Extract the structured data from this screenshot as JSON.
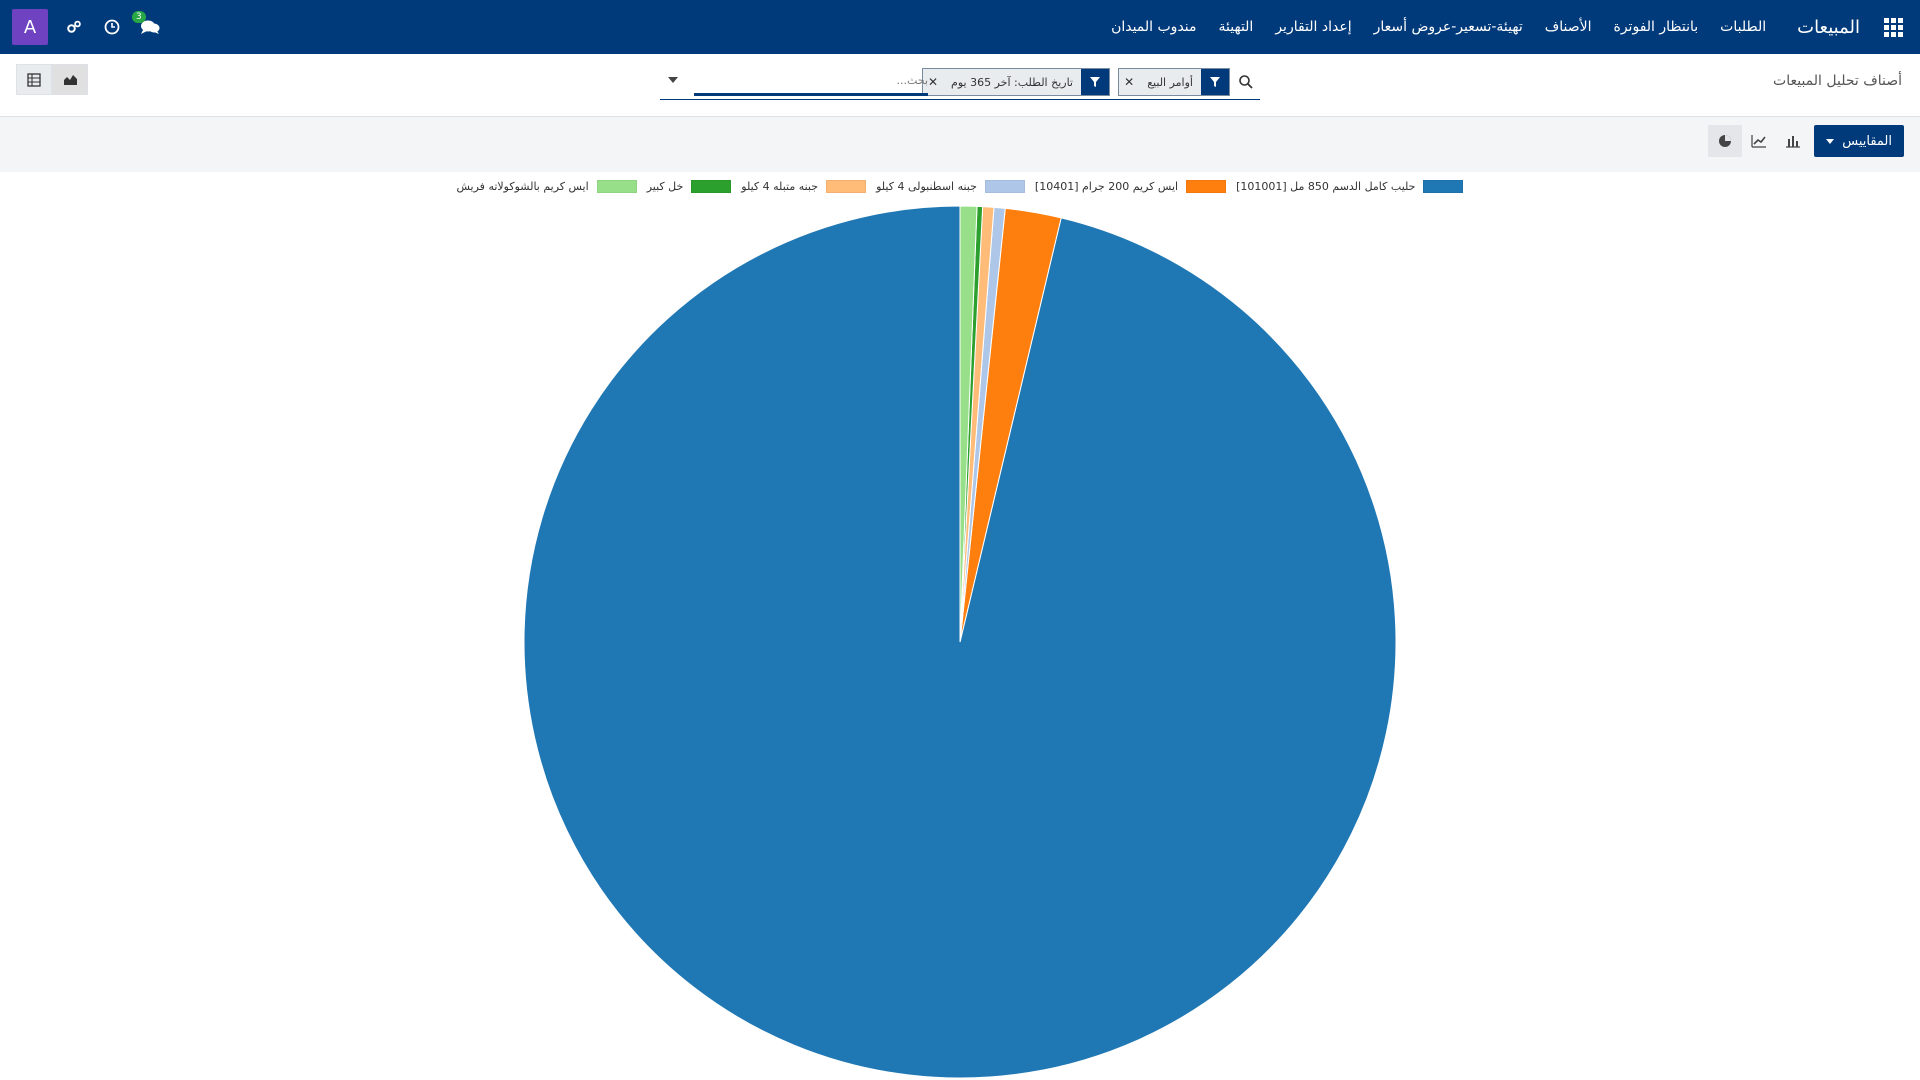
{
  "navbar": {
    "brand": "المبيعات",
    "menu": [
      "الطلبات",
      "بانتظار الفوترة",
      "الأصناف",
      "تهيئة-تسعير-عروض أسعار",
      "إعداد التقارير",
      "التهيئة",
      "مندوب الميدان"
    ],
    "avatar_letter": "A",
    "chat_badge": "3",
    "icons": [
      "apps-grid-icon",
      "chat-icon",
      "clock-icon",
      "settings-icon"
    ]
  },
  "control_panel": {
    "breadcrumb": "أصناف تحليل المبيعات",
    "facets": [
      {
        "value": "أوامر البيع"
      },
      {
        "value": "تاريخ الطلب: آخر 365 يوم"
      }
    ],
    "search_placeholder": "بحث..."
  },
  "toolbar": {
    "measures_label": "المقاييس"
  },
  "colors": {
    "navbar": "#003a7a",
    "avatar": "#6f42c1",
    "badge": "#28a745"
  },
  "chart_data": {
    "type": "pie",
    "legend_position": "top",
    "series": [
      {
        "name": "[101001] حليب كامل الدسم 850 مل",
        "value": 93.0,
        "color": "#1f77b4"
      },
      {
        "name": "[10401] ايس كريم 200 جرام",
        "value": 2.0,
        "color": "#ff7f0e"
      },
      {
        "name": "جبنه اسطنبولى  4 كيلو",
        "value": 0.4,
        "color": "#aec7e8"
      },
      {
        "name": "جبنه متبله 4 كيلو",
        "value": 0.4,
        "color": "#ffbb78"
      },
      {
        "name": "خل كبير",
        "value": 0.2,
        "color": "#2ca02c"
      },
      {
        "name": "ايس كريم بالشوكولاته فريش",
        "value": 0.6,
        "color": "#98df8a"
      }
    ]
  }
}
